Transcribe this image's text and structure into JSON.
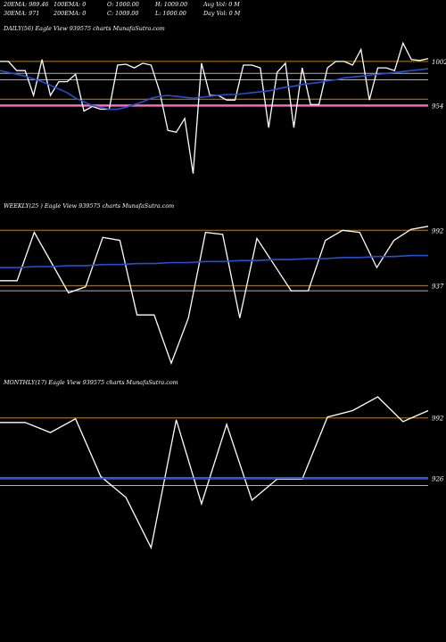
{
  "header": {
    "row1": [
      "20EMA: 989.46",
      "100EMA: 0",
      "O: 1000.00",
      "H: 1009.00",
      "Avg Vol: 0  M"
    ],
    "row2": [
      "30EMA: 971",
      "200EMA: 0",
      "C: 1009.00",
      "L: 1000.00",
      "Day Vol: 0  M"
    ]
  },
  "chart_data": [
    {
      "type": "line",
      "title": "DAILY(56) Eagle  View  939575 charts MunafaSutra.com",
      "ylim": [
        870,
        1030
      ],
      "ytick_labels": [
        1002,
        954
      ],
      "hlines": [
        {
          "value": 1002,
          "color": "#b8860b"
        },
        {
          "value": 989,
          "color": "#b0b0b0"
        },
        {
          "value": 982,
          "color": "#b0b0b0"
        },
        {
          "value": 961,
          "color": "#b8860b"
        },
        {
          "value": 954,
          "color": "#ff69b4"
        }
      ],
      "series": [
        {
          "color": "#ffffff",
          "values": [
            1002,
            1002,
            992,
            992,
            965,
            1004,
            965,
            980,
            980,
            988,
            948,
            953,
            950,
            950,
            998,
            999,
            995,
            1000,
            998,
            970,
            927,
            925,
            940,
            880,
            1000,
            965,
            965,
            960,
            960,
            998,
            998,
            995,
            930,
            990,
            1000,
            930,
            995,
            955,
            955,
            995,
            1002,
            1002,
            998,
            1015,
            960,
            995,
            995,
            992,
            1022,
            1004,
            1003,
            1005
          ]
        },
        {
          "color": "#2450d8",
          "values": [
            992,
            990,
            988,
            986,
            983,
            980,
            976,
            972,
            968,
            962,
            958,
            954,
            952,
            950,
            950,
            952,
            955,
            958,
            962,
            964,
            965,
            964,
            963,
            962,
            963,
            964,
            965,
            966,
            966,
            967,
            968,
            969,
            970,
            972,
            974,
            975,
            977,
            978,
            979,
            981,
            982,
            984,
            985,
            986,
            987,
            988,
            989,
            990,
            991,
            992,
            993,
            994
          ]
        }
      ]
    },
    {
      "type": "line",
      "title": "WEEKLY(25                          ) Eagle  View  939575 charts MunafaSutra.com",
      "ylim": [
        840,
        1010
      ],
      "ytick_labels": [
        992,
        937
      ],
      "hlines": [
        {
          "value": 992,
          "color": "#b8860b"
        },
        {
          "value": 937,
          "color": "#b8860b"
        },
        {
          "value": 932,
          "color": "#b0b0b0"
        }
      ],
      "series": [
        {
          "color": "#ffffff",
          "values": [
            942,
            942,
            990,
            960,
            930,
            936,
            985,
            982,
            908,
            908,
            860,
            905,
            990,
            988,
            905,
            984,
            958,
            932,
            932,
            982,
            992,
            990,
            955,
            982,
            993,
            996
          ]
        },
        {
          "color": "#2450d8",
          "values": [
            955,
            955,
            956,
            956,
            957,
            957,
            958,
            958,
            959,
            959,
            960,
            960,
            961,
            961,
            962,
            962,
            963,
            963,
            964,
            964,
            965,
            965,
            966,
            966,
            967,
            967
          ]
        }
      ]
    },
    {
      "type": "line",
      "title": "MONTHLY(17) Eagle  View  939575 charts MunafaSutra.com",
      "ylim": [
        820,
        1020
      ],
      "ytick_labels": [
        992,
        926
      ],
      "hlines": [
        {
          "value": 992,
          "color": "#b8860b"
        },
        {
          "value": 926,
          "color": "#4a8cff"
        },
        {
          "value": 918,
          "color": "#b0b0b0"
        }
      ],
      "series": [
        {
          "color": "#ffffff",
          "values": [
            987,
            987,
            976,
            991,
            928,
            905,
            850,
            990,
            898,
            985,
            902,
            925,
            925,
            993,
            1000,
            1015,
            988,
            1000
          ]
        },
        {
          "color": "#2450d8",
          "values": [
            926,
            926,
            926,
            926,
            926,
            926,
            926,
            926,
            926,
            926,
            926,
            926,
            926,
            926,
            926,
            926,
            926,
            926
          ]
        }
      ]
    }
  ]
}
